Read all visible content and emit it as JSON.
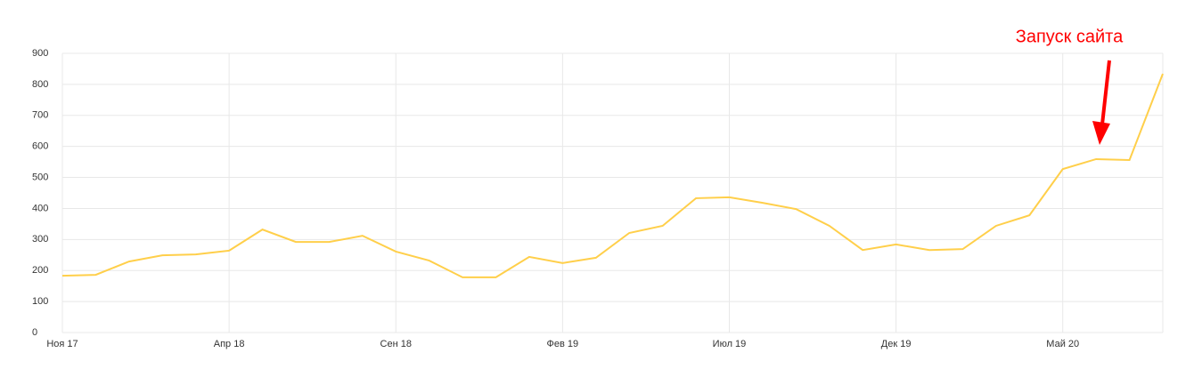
{
  "chart_data": {
    "type": "line",
    "categories": [
      "Ноя 17",
      null,
      null,
      null,
      null,
      "Апр 18",
      null,
      null,
      null,
      null,
      "Сен 18",
      null,
      null,
      null,
      null,
      "Фев 19",
      null,
      null,
      null,
      null,
      "Июл 19",
      null,
      null,
      null,
      null,
      "Дек 19",
      null,
      null,
      null,
      null,
      "Май 20",
      null,
      null,
      null
    ],
    "series": [
      {
        "color": "#ffcf4a",
        "values": [
          183,
          186,
          229,
          249,
          252,
          264,
          332,
          292,
          292,
          312,
          261,
          232,
          178,
          178,
          244,
          224,
          241,
          321,
          344,
          433,
          436,
          418,
          398,
          344,
          266,
          284,
          266,
          269,
          344,
          378,
          527,
          559,
          556,
          834
        ]
      }
    ],
    "ylim": [
      0,
      900
    ],
    "yticks": [
      0,
      100,
      200,
      300,
      400,
      500,
      600,
      700,
      800,
      900
    ],
    "grid": true,
    "annotation": "Запуск сайта"
  }
}
